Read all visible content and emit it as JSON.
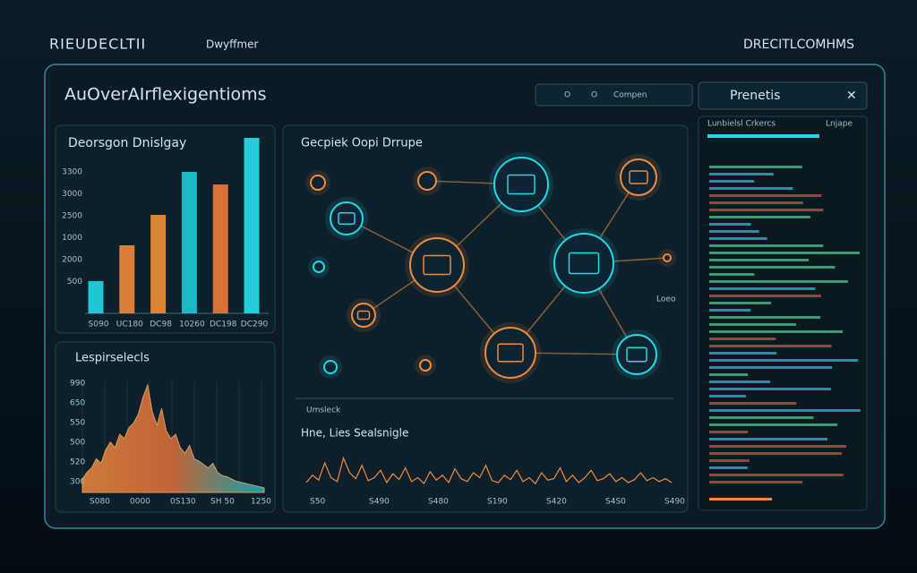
{
  "header": {
    "left_title": "RIEUDECLTII",
    "left_subtitle": "Dwyffmer",
    "right_title": "DRECITLCOMHMS"
  },
  "panel": {
    "title": "AuOverAIrflexigentioms",
    "toolbar": [
      "O",
      "O",
      "Compen"
    ],
    "tab": "Prenetis"
  },
  "bar_chart": {
    "title": "Deorsgon Dnislgay",
    "y_labels": [
      "3300",
      "3000",
      "2500",
      "1000",
      "2000",
      "500"
    ],
    "categories": [
      "S090",
      "UC180",
      "DC98",
      "10260",
      "DC198",
      "DC290"
    ],
    "values": [
      18,
      38,
      55,
      79,
      72,
      98
    ],
    "ylim": [
      0,
      100
    ],
    "colors": [
      "#22d8e6",
      "#f08a3c",
      "#f0903a",
      "#1fc9d6",
      "#f07a36",
      "#27e0ea"
    ]
  },
  "spectrum": {
    "title": "Lespirselecls",
    "y_labels": [
      "990",
      "650",
      "550",
      "500",
      "520",
      "300"
    ],
    "x_labels": [
      "S080",
      "0000",
      "0S130",
      "SH 50",
      "1250"
    ],
    "values": [
      12,
      18,
      22,
      30,
      26,
      38,
      45,
      40,
      52,
      48,
      58,
      62,
      70,
      85,
      96,
      72,
      60,
      75,
      55,
      48,
      52,
      40,
      35,
      42,
      30,
      28,
      25,
      22,
      26,
      18,
      15,
      14,
      12,
      10,
      9,
      8,
      7,
      6,
      5,
      4
    ],
    "ylim": [
      0,
      100
    ]
  },
  "network": {
    "title": "Gecpiek Oopi Drrupe",
    "side_label": "Loeo"
  },
  "signal": {
    "label": "Umsleck",
    "title": "Hne, Lies Sealsnigle",
    "x_labels": [
      "S50",
      "S490",
      "S480",
      "S190",
      "S420",
      "S4S0",
      "S490"
    ],
    "values": [
      20,
      35,
      25,
      60,
      30,
      22,
      70,
      40,
      28,
      55,
      24,
      30,
      45,
      20,
      38,
      26,
      50,
      22,
      30,
      18,
      42,
      25,
      35,
      20,
      48,
      28,
      22,
      40,
      30,
      55,
      24,
      20,
      35,
      26,
      45,
      22,
      30,
      18,
      40,
      25,
      28,
      50,
      22,
      35,
      20,
      30,
      45,
      24,
      28,
      38,
      22,
      30,
      20,
      26,
      40,
      24,
      30,
      22,
      28,
      20
    ],
    "ylim": [
      0,
      100
    ]
  },
  "log": {
    "title": "Lunbielsl Crkercs",
    "side": "Lnjape"
  }
}
